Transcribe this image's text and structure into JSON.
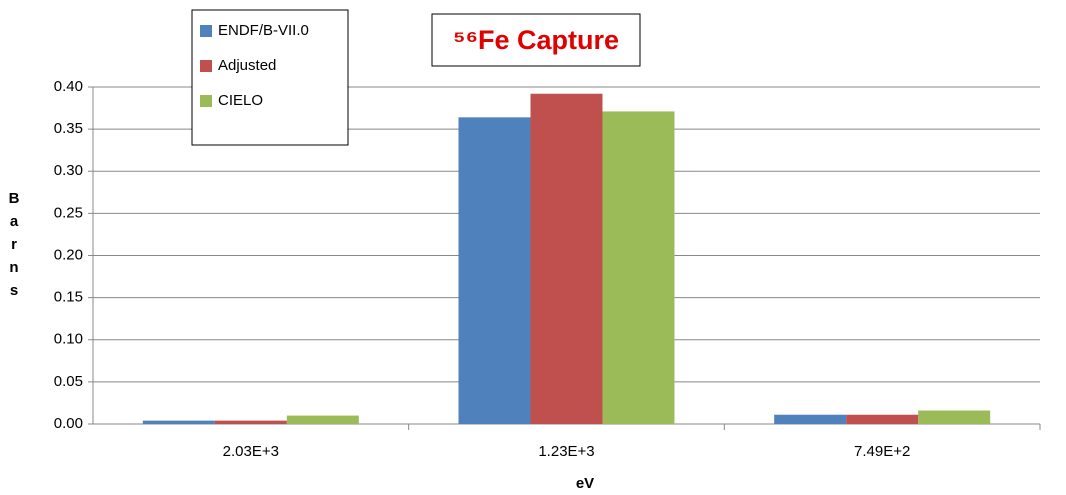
{
  "chart_data": {
    "type": "bar",
    "title": "⁵⁶Fe Capture",
    "xlabel": "eV",
    "ylabel": "Barns",
    "categories": [
      "2.03E+3",
      "1.23E+3",
      "7.49E+2"
    ],
    "series": [
      {
        "name": "ENDF/B-VII.0",
        "color": "#4f81bd",
        "values": [
          0.004,
          0.364,
          0.011
        ]
      },
      {
        "name": "Adjusted",
        "color": "#c0504d",
        "values": [
          0.004,
          0.392,
          0.011
        ]
      },
      {
        "name": "CIELO",
        "color": "#9bbb59",
        "values": [
          0.01,
          0.371,
          0.016
        ]
      }
    ],
    "ylim": [
      0,
      0.4
    ],
    "yticks": [
      {
        "value": 0,
        "label": "0.00"
      },
      {
        "value": 0.05,
        "label": "0.05"
      },
      {
        "value": 0.1,
        "label": "0.10"
      },
      {
        "value": 0.15,
        "label": "0.15"
      },
      {
        "value": 0.2,
        "label": "0.20"
      },
      {
        "value": 0.25,
        "label": "0.25"
      },
      {
        "value": 0.3,
        "label": "0.30"
      },
      {
        "value": 0.35,
        "label": "0.35"
      },
      {
        "value": 0.4,
        "label": "0.40"
      }
    ],
    "grid": true,
    "legend": "upper left"
  }
}
